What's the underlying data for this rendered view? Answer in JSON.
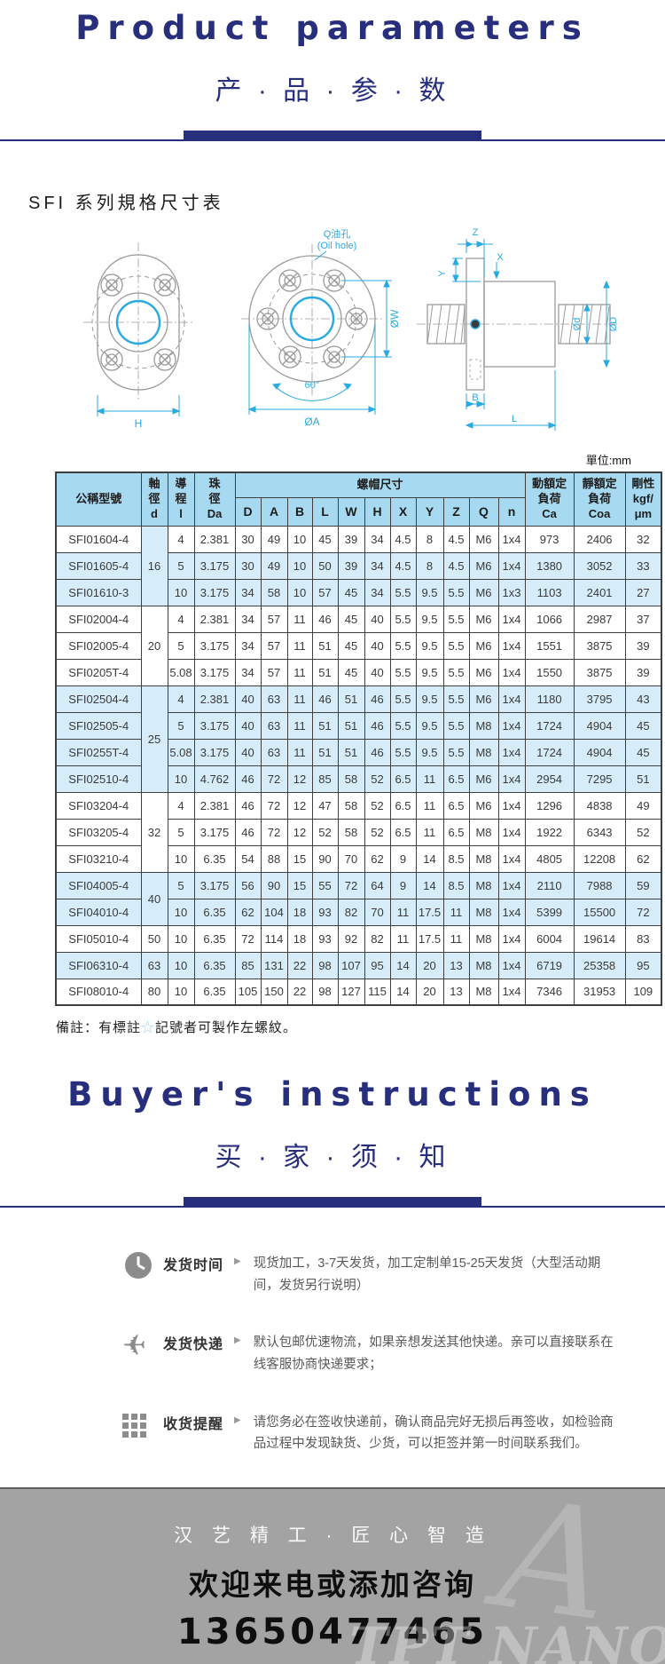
{
  "header": {
    "title_en": "Product parameters",
    "title_cn": "产 · 品 · 参 · 数"
  },
  "section": {
    "title": "SFI 系列規格尺寸表",
    "unit_label": "單位:mm"
  },
  "diagram": {
    "oil_hole_cn": "Q油孔",
    "oil_hole_en": "(Oil hole)",
    "dim_w": "ØW",
    "dim_angle": "60°",
    "dim_a": "ØA",
    "dim_h": "H",
    "dim_z": "Z",
    "dim_y": "Y",
    "dim_x": "X",
    "dim_d_small": "Ød",
    "dim_d_big": "ØD",
    "dim_b": "B",
    "dim_l": "L",
    "line_color": "#9a9a9a",
    "dim_color": "#29aae1"
  },
  "table": {
    "headers": {
      "model": "公稱型號",
      "shaft": "軸\n徑\nd",
      "lead": "導\n程\nl",
      "ball": "珠\n徑\nDa",
      "nut": "螺帽尺寸",
      "ca": "動額定\n負荷\nCa",
      "coa": "靜額定\n負荷\nCoa",
      "rigidity": "剛性\nkgf/\nμm"
    },
    "dim_cols": [
      "D",
      "A",
      "B",
      "L",
      "W",
      "H",
      "X",
      "Y",
      "Z",
      "Q",
      "n"
    ],
    "star_glyph": "☆",
    "header_bg": "#a7daf1",
    "shade_bg": "#d6edf9",
    "groups": [
      {
        "d": "16",
        "shade": true,
        "rows": [
          {
            "star": false,
            "shade": false,
            "model": "SFI01604-4",
            "cells": [
              "4",
              "2.381",
              "30",
              "49",
              "10",
              "45",
              "39",
              "34",
              "4.5",
              "8",
              "4.5",
              "M6",
              "1x4",
              "973",
              "2406",
              "32"
            ]
          },
          {
            "star": true,
            "shade": true,
            "model": "SFI01605-4",
            "cells": [
              "5",
              "3.175",
              "30",
              "49",
              "10",
              "50",
              "39",
              "34",
              "4.5",
              "8",
              "4.5",
              "M6",
              "1x4",
              "1380",
              "3052",
              "33"
            ]
          },
          {
            "star": true,
            "shade": true,
            "model": "SFI01610-3",
            "cells": [
              "10",
              "3.175",
              "34",
              "58",
              "10",
              "57",
              "45",
              "34",
              "5.5",
              "9.5",
              "5.5",
              "M6",
              "1x3",
              "1103",
              "2401",
              "27"
            ]
          }
        ]
      },
      {
        "d": "20",
        "shade": false,
        "rows": [
          {
            "star": false,
            "shade": false,
            "model": "SFI02004-4",
            "cells": [
              "4",
              "2.381",
              "34",
              "57",
              "11",
              "46",
              "45",
              "40",
              "5.5",
              "9.5",
              "5.5",
              "M6",
              "1x4",
              "1066",
              "2987",
              "37"
            ]
          },
          {
            "star": true,
            "shade": false,
            "model": "SFI02005-4",
            "cells": [
              "5",
              "3.175",
              "34",
              "57",
              "11",
              "51",
              "45",
              "40",
              "5.5",
              "9.5",
              "5.5",
              "M6",
              "1x4",
              "1551",
              "3875",
              "39"
            ]
          },
          {
            "star": false,
            "shade": false,
            "model": "SFI0205T-4",
            "cells": [
              "5.08",
              "3.175",
              "34",
              "57",
              "11",
              "51",
              "45",
              "40",
              "5.5",
              "9.5",
              "5.5",
              "M6",
              "1x4",
              "1550",
              "3875",
              "39"
            ]
          }
        ]
      },
      {
        "d": "25",
        "shade": true,
        "rows": [
          {
            "star": true,
            "shade": true,
            "model": "SFI02504-4",
            "cells": [
              "4",
              "2.381",
              "40",
              "63",
              "11",
              "46",
              "51",
              "46",
              "5.5",
              "9.5",
              "5.5",
              "M6",
              "1x4",
              "1180",
              "3795",
              "43"
            ]
          },
          {
            "star": true,
            "shade": true,
            "model": "SFI02505-4",
            "cells": [
              "5",
              "3.175",
              "40",
              "63",
              "11",
              "51",
              "51",
              "46",
              "5.5",
              "9.5",
              "5.5",
              "M8",
              "1x4",
              "1724",
              "4904",
              "45"
            ]
          },
          {
            "star": false,
            "shade": true,
            "model": "SFI0255T-4",
            "cells": [
              "5.08",
              "3.175",
              "40",
              "63",
              "11",
              "51",
              "51",
              "46",
              "5.5",
              "9.5",
              "5.5",
              "M8",
              "1x4",
              "1724",
              "4904",
              "45"
            ]
          },
          {
            "star": true,
            "shade": true,
            "model": "SFI02510-4",
            "cells": [
              "10",
              "4.762",
              "46",
              "72",
              "12",
              "85",
              "58",
              "52",
              "6.5",
              "11",
              "6.5",
              "M6",
              "1x4",
              "2954",
              "7295",
              "51"
            ]
          }
        ]
      },
      {
        "d": "32",
        "shade": false,
        "rows": [
          {
            "star": false,
            "shade": false,
            "model": "SFI03204-4",
            "cells": [
              "4",
              "2.381",
              "46",
              "72",
              "12",
              "47",
              "58",
              "52",
              "6.5",
              "11",
              "6.5",
              "M6",
              "1x4",
              "1296",
              "4838",
              "49"
            ]
          },
          {
            "star": true,
            "shade": false,
            "model": "SFI03205-4",
            "cells": [
              "5",
              "3.175",
              "46",
              "72",
              "12",
              "52",
              "58",
              "52",
              "6.5",
              "11",
              "6.5",
              "M8",
              "1x4",
              "1922",
              "6343",
              "52"
            ]
          },
          {
            "star": true,
            "shade": false,
            "model": "SFI03210-4",
            "cells": [
              "10",
              "6.35",
              "54",
              "88",
              "15",
              "90",
              "70",
              "62",
              "9",
              "14",
              "8.5",
              "M8",
              "1x4",
              "4805",
              "12208",
              "62"
            ]
          }
        ]
      },
      {
        "d": "40",
        "shade": true,
        "rows": [
          {
            "star": true,
            "shade": true,
            "model": "SFI04005-4",
            "cells": [
              "5",
              "3.175",
              "56",
              "90",
              "15",
              "55",
              "72",
              "64",
              "9",
              "14",
              "8.5",
              "M8",
              "1x4",
              "2110",
              "7988",
              "59"
            ]
          },
          {
            "star": true,
            "shade": true,
            "model": "SFI04010-4",
            "cells": [
              "10",
              "6.35",
              "62",
              "104",
              "18",
              "93",
              "82",
              "70",
              "11",
              "17.5",
              "11",
              "M8",
              "1x4",
              "5399",
              "15500",
              "72"
            ]
          }
        ]
      },
      {
        "d": "50",
        "shade": false,
        "rows": [
          {
            "star": true,
            "shade": false,
            "model": "SFI05010-4",
            "cells": [
              "10",
              "6.35",
              "72",
              "114",
              "18",
              "93",
              "92",
              "82",
              "11",
              "17.5",
              "11",
              "M8",
              "1x4",
              "6004",
              "19614",
              "83"
            ]
          }
        ]
      },
      {
        "d": "63",
        "shade": true,
        "rows": [
          {
            "star": true,
            "shade": true,
            "model": "SFI06310-4",
            "cells": [
              "10",
              "6.35",
              "85",
              "131",
              "22",
              "98",
              "107",
              "95",
              "14",
              "20",
              "13",
              "M8",
              "1x4",
              "6719",
              "25358",
              "95"
            ]
          }
        ]
      },
      {
        "d": "80",
        "shade": false,
        "rows": [
          {
            "star": false,
            "shade": false,
            "model": "SFI08010-4",
            "cells": [
              "10",
              "6.35",
              "105",
              "150",
              "22",
              "98",
              "127",
              "115",
              "14",
              "20",
              "13",
              "M8",
              "1x4",
              "7346",
              "31953",
              "109"
            ]
          }
        ]
      }
    ]
  },
  "note": {
    "prefix": "備註：有標註",
    "star": "☆",
    "suffix": "記號者可製作左螺紋。"
  },
  "buyers": {
    "title_en": "Buyer's instructions",
    "title_cn": "买 · 家 · 须 · 知"
  },
  "info_rows": [
    {
      "icon": "clock-icon",
      "label": "发货时间",
      "arrow": "▶",
      "text": "现货加工，3-7天发货，加工定制单15-25天发货（大型活动期间，发货另行说明）"
    },
    {
      "icon": "plane-icon",
      "label": "发货快递",
      "arrow": "▶",
      "text": "默认包邮优速物流，如果亲想发送其他快递。亲可以直接联系在线客服协商快递要求；"
    },
    {
      "icon": "package-grid-icon",
      "label": "收货提醒",
      "arrow": "▶",
      "text": "请您务必在签收快递前，确认商品完好无损后再签收，如检验商品过程中发现缺货、少货，可以拒签并第一时间联系我们。"
    }
  ],
  "footer": {
    "slogan": "汉 艺 精 工 · 匠 心 智 造",
    "welcome": "欢迎来电或添加咨询",
    "phone": "13650477465",
    "watermark": "TPT NANO",
    "watermark_mark": "A",
    "bg_color": "#a3a3a3"
  }
}
